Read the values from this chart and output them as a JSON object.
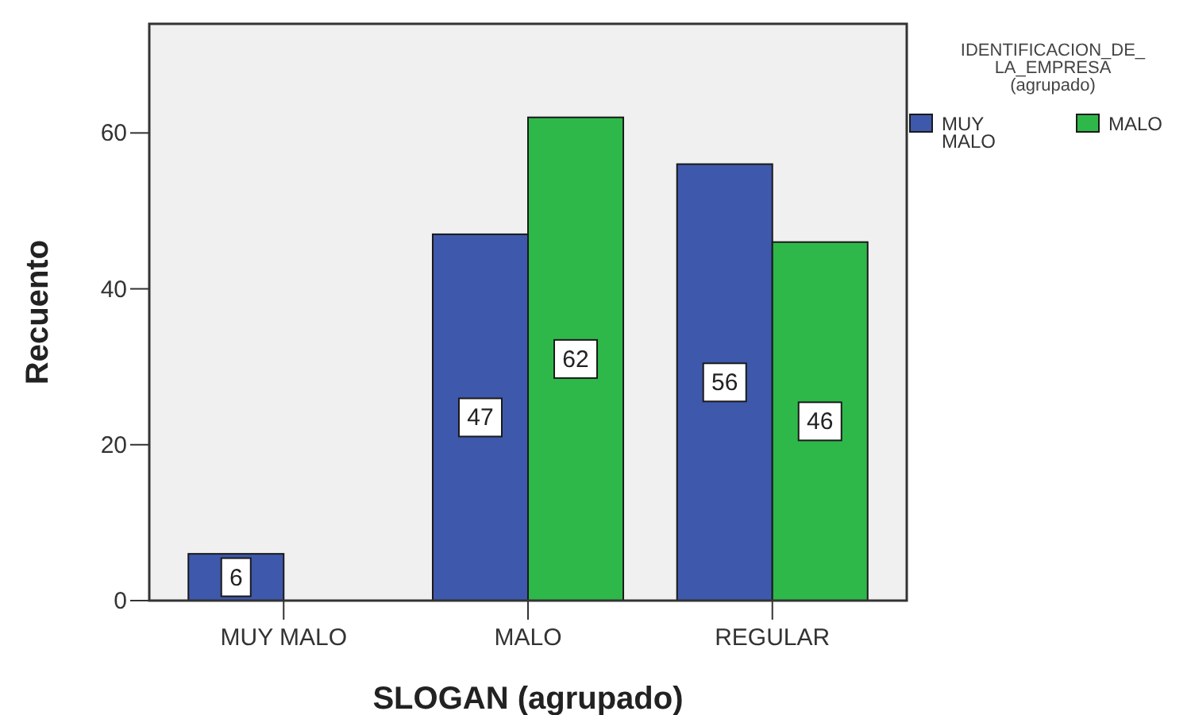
{
  "chart_data": {
    "type": "bar",
    "categories": [
      "MUY MALO",
      "MALO",
      "REGULAR"
    ],
    "series": [
      {
        "name": "MUY MALO",
        "color": "#3e58ac",
        "values": [
          6,
          47,
          56
        ]
      },
      {
        "name": "MALO",
        "color": "#2fb84a",
        "values": [
          null,
          62,
          46
        ]
      }
    ],
    "xlabel": "SLOGAN (agrupado)",
    "ylabel": "Recuento",
    "legend_title": "IDENTIFICACION_DE_\nLA_EMPRESA\n(agrupado)",
    "legend": "top right",
    "ylim": [
      0,
      74
    ],
    "yticks": [
      0,
      20,
      40,
      60
    ],
    "data_labels": true
  }
}
